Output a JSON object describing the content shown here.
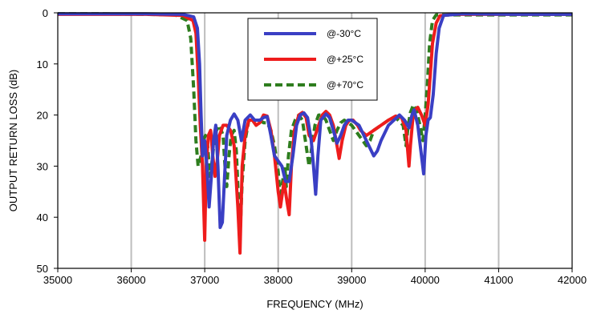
{
  "chart_data": {
    "type": "line",
    "title": "",
    "xlabel": "FREQUENCY (MHz)",
    "ylabel": "OUTPUT RETURN LOSS (dB)",
    "xlim": [
      35000,
      42000
    ],
    "ylim": [
      0,
      50
    ],
    "y_inverted": true,
    "grid": "vertical",
    "legend_position": "top-center",
    "x_ticks": [
      "35000",
      "36000",
      "37000",
      "38000",
      "39000",
      "40000",
      "41000",
      "42000"
    ],
    "y_ticks": [
      "0",
      "10",
      "20",
      "30",
      "40",
      "50"
    ],
    "series": [
      {
        "name": "@-30°C",
        "color": "#3a3fc4",
        "dash": "solid",
        "points": [
          [
            35000,
            0.2
          ],
          [
            35600,
            0.2
          ],
          [
            36200,
            0.2
          ],
          [
            36700,
            0.3
          ],
          [
            36850,
            0.8
          ],
          [
            36900,
            3
          ],
          [
            36930,
            10
          ],
          [
            36950,
            20
          ],
          [
            36970,
            28
          ],
          [
            37000,
            25
          ],
          [
            37030,
            30
          ],
          [
            37060,
            38
          ],
          [
            37090,
            32
          ],
          [
            37120,
            25
          ],
          [
            37150,
            22
          ],
          [
            37180,
            30
          ],
          [
            37210,
            42
          ],
          [
            37240,
            41
          ],
          [
            37270,
            32
          ],
          [
            37300,
            24
          ],
          [
            37350,
            21
          ],
          [
            37400,
            19.8
          ],
          [
            37450,
            21
          ],
          [
            37500,
            25
          ],
          [
            37550,
            21
          ],
          [
            37620,
            20
          ],
          [
            37680,
            21
          ],
          [
            37750,
            21
          ],
          [
            37800,
            20.5
          ],
          [
            37850,
            20.3
          ],
          [
            37900,
            24
          ],
          [
            37950,
            28
          ],
          [
            38000,
            29
          ],
          [
            38050,
            30
          ],
          [
            38100,
            33
          ],
          [
            38150,
            33
          ],
          [
            38200,
            28
          ],
          [
            38250,
            22
          ],
          [
            38300,
            20
          ],
          [
            38350,
            19.6
          ],
          [
            38400,
            20.5
          ],
          [
            38450,
            25
          ],
          [
            38480,
            30
          ],
          [
            38510,
            35.5
          ],
          [
            38540,
            28
          ],
          [
            38580,
            21
          ],
          [
            38650,
            19.8
          ],
          [
            38700,
            20.5
          ],
          [
            38750,
            23
          ],
          [
            38800,
            25.5
          ],
          [
            38850,
            24
          ],
          [
            38900,
            22
          ],
          [
            38950,
            21
          ],
          [
            39000,
            21
          ],
          [
            39100,
            22
          ],
          [
            39200,
            25
          ],
          [
            39300,
            28
          ],
          [
            39350,
            27
          ],
          [
            39400,
            25
          ],
          [
            39500,
            22
          ],
          [
            39650,
            20
          ],
          [
            39720,
            21
          ],
          [
            39780,
            22.5
          ],
          [
            39820,
            20
          ],
          [
            39850,
            19
          ],
          [
            39900,
            22
          ],
          [
            39950,
            28
          ],
          [
            39980,
            31.5
          ],
          [
            40010,
            24
          ],
          [
            40040,
            21
          ],
          [
            40070,
            20.5
          ],
          [
            40110,
            16
          ],
          [
            40150,
            8
          ],
          [
            40190,
            3
          ],
          [
            40250,
            0.5
          ],
          [
            40500,
            0.2
          ],
          [
            41200,
            0.3
          ],
          [
            42000,
            0.3
          ]
        ]
      },
      {
        "name": "@+25°C",
        "color": "#ee1c1c",
        "dash": "solid",
        "points": [
          [
            35000,
            0.3
          ],
          [
            35600,
            0.3
          ],
          [
            36200,
            0.3
          ],
          [
            36700,
            0.5
          ],
          [
            36840,
            1.5
          ],
          [
            36880,
            4
          ],
          [
            36910,
            12
          ],
          [
            36940,
            22
          ],
          [
            36970,
            30
          ],
          [
            37000,
            44.5
          ],
          [
            37020,
            30
          ],
          [
            37050,
            24
          ],
          [
            37080,
            23
          ],
          [
            37110,
            28
          ],
          [
            37140,
            32
          ],
          [
            37170,
            29
          ],
          [
            37200,
            24
          ],
          [
            37250,
            22
          ],
          [
            37300,
            22
          ],
          [
            37350,
            23
          ],
          [
            37400,
            26
          ],
          [
            37450,
            38
          ],
          [
            37480,
            47
          ],
          [
            37510,
            30
          ],
          [
            37550,
            24
          ],
          [
            37600,
            21
          ],
          [
            37650,
            21
          ],
          [
            37700,
            22
          ],
          [
            37750,
            21.5
          ],
          [
            37800,
            20
          ],
          [
            37850,
            20.2
          ],
          [
            37900,
            23
          ],
          [
            37950,
            28
          ],
          [
            38000,
            35
          ],
          [
            38030,
            38
          ],
          [
            38080,
            33
          ],
          [
            38120,
            37
          ],
          [
            38150,
            39.5
          ],
          [
            38180,
            30
          ],
          [
            38220,
            23
          ],
          [
            38280,
            20
          ],
          [
            38330,
            19.5
          ],
          [
            38380,
            20.5
          ],
          [
            38420,
            24
          ],
          [
            38480,
            25
          ],
          [
            38550,
            22
          ],
          [
            38600,
            20
          ],
          [
            38650,
            19.3
          ],
          [
            38700,
            20
          ],
          [
            38750,
            22
          ],
          [
            38800,
            26
          ],
          [
            38830,
            28.5
          ],
          [
            38870,
            25
          ],
          [
            38920,
            22
          ],
          [
            38970,
            21
          ],
          [
            39020,
            21
          ],
          [
            39080,
            22
          ],
          [
            39120,
            23
          ],
          [
            39200,
            24
          ],
          [
            39300,
            23
          ],
          [
            39400,
            22
          ],
          [
            39500,
            21
          ],
          [
            39600,
            20.2
          ],
          [
            39680,
            20.5
          ],
          [
            39740,
            23
          ],
          [
            39780,
            30
          ],
          [
            39800,
            26
          ],
          [
            39830,
            21
          ],
          [
            39860,
            19
          ],
          [
            39900,
            18.5
          ],
          [
            39950,
            20
          ],
          [
            40000,
            22
          ],
          [
            40040,
            18
          ],
          [
            40070,
            12
          ],
          [
            40100,
            6
          ],
          [
            40150,
            2
          ],
          [
            40200,
            0.6
          ],
          [
            40400,
            0.3
          ],
          [
            41200,
            0.3
          ],
          [
            42000,
            0.3
          ]
        ]
      },
      {
        "name": "@+70°C",
        "color": "#2e7d1e",
        "dash": "dashed",
        "points": [
          [
            35000,
            0.2
          ],
          [
            35600,
            0.2
          ],
          [
            36200,
            0.3
          ],
          [
            36600,
            0.4
          ],
          [
            36760,
            1.5
          ],
          [
            36810,
            5
          ],
          [
            36850,
            15
          ],
          [
            36880,
            25
          ],
          [
            36910,
            30
          ],
          [
            36950,
            28
          ],
          [
            36980,
            25
          ],
          [
            37010,
            24
          ],
          [
            37040,
            26
          ],
          [
            37070,
            32
          ],
          [
            37100,
            29
          ],
          [
            37130,
            25
          ],
          [
            37160,
            23
          ],
          [
            37200,
            22
          ],
          [
            37250,
            24
          ],
          [
            37280,
            31
          ],
          [
            37300,
            34
          ],
          [
            37330,
            28
          ],
          [
            37360,
            24
          ],
          [
            37400,
            23
          ],
          [
            37430,
            27
          ],
          [
            37460,
            37
          ],
          [
            37480,
            44
          ],
          [
            37510,
            33
          ],
          [
            37550,
            25
          ],
          [
            37600,
            21
          ],
          [
            37650,
            21
          ],
          [
            37700,
            22
          ],
          [
            37750,
            21
          ],
          [
            37800,
            21.5
          ],
          [
            37850,
            21.5
          ],
          [
            37900,
            23
          ],
          [
            37950,
            26
          ],
          [
            38000,
            31
          ],
          [
            38030,
            36.5
          ],
          [
            38060,
            33
          ],
          [
            38090,
            30
          ],
          [
            38110,
            34
          ],
          [
            38140,
            28
          ],
          [
            38180,
            23
          ],
          [
            38230,
            21
          ],
          [
            38280,
            20
          ],
          [
            38330,
            21
          ],
          [
            38380,
            26
          ],
          [
            38420,
            30
          ],
          [
            38460,
            26
          ],
          [
            38500,
            22
          ],
          [
            38550,
            20
          ],
          [
            38600,
            20
          ],
          [
            38650,
            21
          ],
          [
            38700,
            23
          ],
          [
            38750,
            25
          ],
          [
            38800,
            23
          ],
          [
            38850,
            21.5
          ],
          [
            38900,
            21
          ],
          [
            38950,
            21.5
          ],
          [
            39000,
            22
          ],
          [
            39100,
            24
          ],
          [
            39200,
            26
          ],
          [
            39250,
            25
          ],
          [
            39300,
            23
          ],
          [
            39400,
            22
          ],
          [
            39500,
            21
          ],
          [
            39600,
            20.5
          ],
          [
            39700,
            22
          ],
          [
            39740,
            26
          ],
          [
            39770,
            22
          ],
          [
            39800,
            19.5
          ],
          [
            39840,
            18
          ],
          [
            39880,
            19
          ],
          [
            39930,
            22
          ],
          [
            39970,
            25
          ],
          [
            40000,
            20
          ],
          [
            40030,
            14
          ],
          [
            40060,
            6
          ],
          [
            40100,
            1.5
          ],
          [
            40150,
            0.4
          ],
          [
            40500,
            0.4
          ],
          [
            41200,
            0.4
          ],
          [
            42000,
            0.4
          ]
        ]
      }
    ]
  }
}
